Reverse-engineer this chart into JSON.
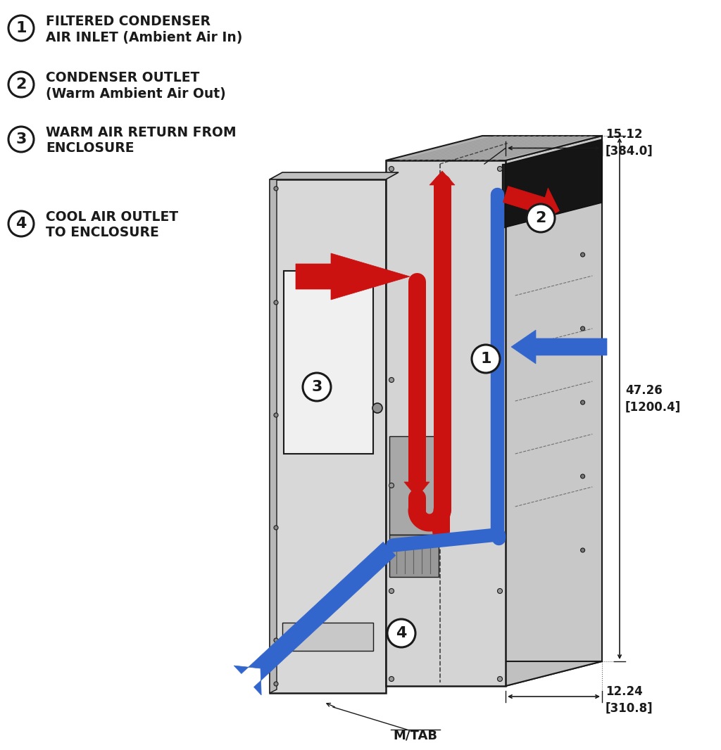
{
  "bg_color": "#ffffff",
  "dark_color": "#1a1a1a",
  "red_color": "#cc1111",
  "blue_color": "#3366cc",
  "cabinet_front": "#d4d4d4",
  "cabinet_side": "#c8c8c8",
  "cabinet_top": "#b0b0b0",
  "cabinet_inner": "#bebebe",
  "cabinet_dark_inner": "#a8a8a8",
  "door_face": "#d8d8d8",
  "door_edge": "#c0c0c0",
  "label1_text1": "FILTERED CONDENSER",
  "label1_text2": "AIR INLET (Ambient Air In)",
  "label2_text1": "CONDENSER OUTLET",
  "label2_text2": "(Warm Ambient Air Out)",
  "label3_text1": "WARM AIR RETURN FROM",
  "label3_text2": "ENCLOSURE",
  "label4_text1": "COOL AIR OUTLET",
  "label4_text2": "TO ENCLOSURE",
  "dim1": "15.12\n[384.0]",
  "dim2": "47.26\n[1200.4]",
  "dim3": "12.24\n[310.8]",
  "mtab": "M/TAB",
  "fs_legend": 13.5,
  "fs_dim": 12,
  "fs_circle": 14
}
